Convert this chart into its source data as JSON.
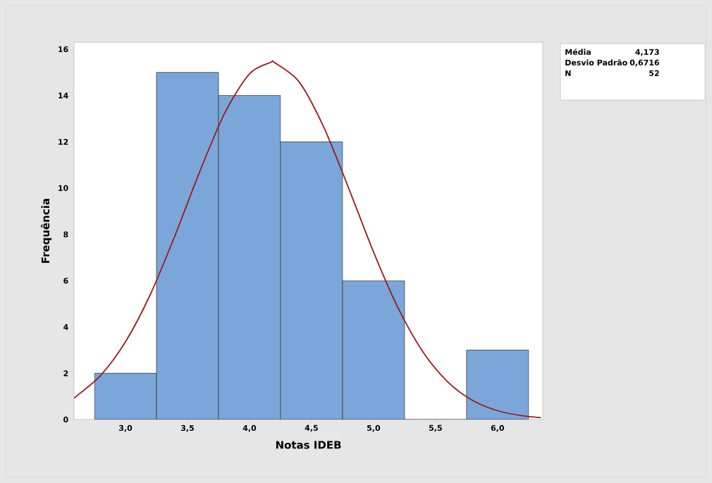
{
  "chart_data": {
    "type": "histogram",
    "xlabel": "Notas IDEB",
    "ylabel": "Frequência",
    "bins": [
      2.75,
      3.25,
      3.75,
      4.25,
      4.75,
      5.25,
      5.75,
      6.25
    ],
    "values": [
      2,
      15,
      14,
      12,
      6,
      0,
      3
    ],
    "color": "#7ba6d9",
    "series": [
      {
        "type": "line",
        "color": "#9b1b1b",
        "x": [
          2.585,
          2.6,
          2.8,
          3.0,
          3.2,
          3.4,
          3.6,
          3.8,
          4.0,
          4.173,
          4.2,
          4.4,
          4.6,
          4.8,
          5.0,
          5.2,
          5.4,
          5.6,
          5.8,
          6.0,
          6.2,
          6.35
        ],
        "values": [
          0.94,
          0.99,
          1.91,
          3.36,
          5.4,
          7.96,
          10.73,
          13.24,
          14.94,
          15.44,
          15.43,
          14.59,
          12.62,
          9.99,
          7.24,
          4.8,
          2.91,
          1.62,
          0.82,
          0.38,
          0.16,
          0.08
        ]
      }
    ],
    "xlim": [
      2.585,
      6.365
    ],
    "ylim": [
      0,
      16.3
    ],
    "xticks": [
      {
        "value": 3.0,
        "label": "3,0"
      },
      {
        "value": 3.5,
        "label": "3,5"
      },
      {
        "value": 4.0,
        "label": "4,0"
      },
      {
        "value": 4.5,
        "label": "4,5"
      },
      {
        "value": 5.0,
        "label": "5,0"
      },
      {
        "value": 5.5,
        "label": "5,5"
      },
      {
        "value": 6.0,
        "label": "6,0"
      }
    ],
    "yticks": [
      0,
      2,
      4,
      6,
      8,
      10,
      12,
      14,
      16
    ],
    "annotations": [
      "Média",
      "4,173",
      "Desvio Padrão",
      "0,6716",
      "N",
      "52"
    ]
  }
}
